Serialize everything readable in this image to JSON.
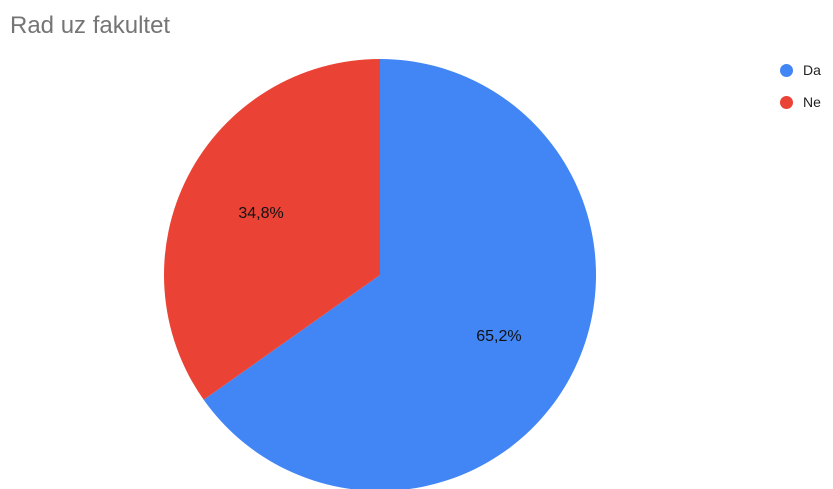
{
  "chart_data": {
    "type": "pie",
    "title": "Rad uz fakultet",
    "legend_position": "right",
    "slices": [
      {
        "label": "Da",
        "value": 65.2,
        "display": "65,2%",
        "color": "#4285f4"
      },
      {
        "label": "Ne",
        "value": 34.8,
        "display": "34,8%",
        "color": "#ea4335"
      }
    ]
  }
}
